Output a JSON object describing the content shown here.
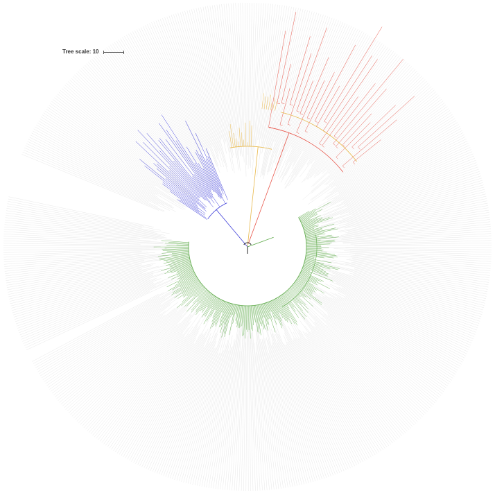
{
  "tree_scale": {
    "label": "Tree scale: 10"
  },
  "clades": [
    {
      "id": "red",
      "color": "#e8564a"
    },
    {
      "id": "orange",
      "color": "#e8b84a"
    },
    {
      "id": "blue",
      "color": "#3d3dd9"
    },
    {
      "id": "green",
      "color": "#5aa845"
    }
  ],
  "colors": {
    "leader": "#dcdcdc",
    "root": "#222222",
    "background": "#ffffff"
  }
}
